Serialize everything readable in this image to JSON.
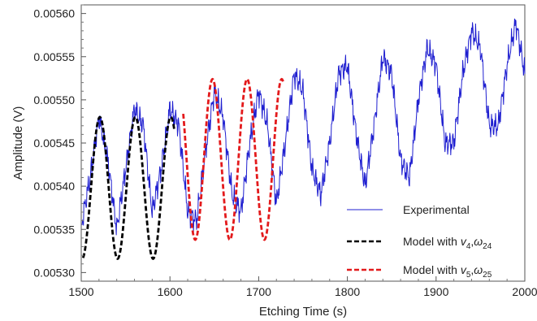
{
  "chart_data": {
    "type": "line",
    "title": "",
    "xlabel": "Etching Time (s)",
    "ylabel": "Amplitude (V)",
    "xlim": [
      1500,
      2000
    ],
    "ylim": [
      0.00529,
      0.00561
    ],
    "xticks": [
      "1500",
      "1600",
      "1700",
      "1800",
      "1900",
      "2000"
    ],
    "yticks": [
      "0.00530",
      "0.00535",
      "0.00540",
      "0.00545",
      "0.00550",
      "0.00555",
      "0.00560"
    ],
    "grid": false,
    "legend_position": "bottom-right",
    "legend": [
      {
        "label": "Experimental",
        "color": "#1f1fd0",
        "style": "solid"
      },
      {
        "label_parts": [
          "Model with ",
          "v",
          "4",
          ",",
          "ω",
          "24"
        ],
        "color": "#000000",
        "style": "dashed"
      },
      {
        "label_parts": [
          "Model with ",
          "v",
          "5",
          ",",
          "ω",
          "25"
        ],
        "color": "#e31a1c",
        "style": "dashed"
      }
    ],
    "series": [
      {
        "key": "experimental",
        "color": "#1f1fd0",
        "style": "solid",
        "x": [
          1501,
          1510,
          1520,
          1530,
          1540,
          1550,
          1560,
          1570,
          1580,
          1590,
          1600,
          1610,
          1620,
          1630,
          1640,
          1650,
          1660,
          1670,
          1680,
          1690,
          1700,
          1710,
          1720,
          1730,
          1740,
          1750,
          1760,
          1770,
          1780,
          1790,
          1800,
          1810,
          1820,
          1830,
          1840,
          1850,
          1860,
          1870,
          1880,
          1890,
          1900,
          1910,
          1920,
          1930,
          1940,
          1950,
          1960,
          1970,
          1980,
          1990,
          2000
        ],
        "y": [
          0.00536,
          0.00541,
          0.00548,
          0.00543,
          0.00535,
          0.00542,
          0.00549,
          0.00547,
          0.00537,
          0.00542,
          0.00549,
          0.00547,
          0.00537,
          0.00536,
          0.00544,
          0.00551,
          0.00548,
          0.00539,
          0.00537,
          0.00545,
          0.00551,
          0.00547,
          0.00538,
          0.00545,
          0.00553,
          0.00551,
          0.00542,
          0.00539,
          0.00545,
          0.00553,
          0.00554,
          0.00546,
          0.0054,
          0.00547,
          0.00555,
          0.00553,
          0.00543,
          0.00541,
          0.0055,
          0.00556,
          0.00554,
          0.00545,
          0.00545,
          0.00553,
          0.00558,
          0.00556,
          0.00547,
          0.00547,
          0.00554,
          0.00559,
          0.00553
        ]
      },
      {
        "key": "model_v4",
        "color": "#000000",
        "style": "dashed",
        "x_range": [
          1502,
          1605
        ],
        "offset": 0.005398,
        "amplitude": 8.2e-05,
        "period": 40,
        "peak_x": 1521
      },
      {
        "key": "model_v5",
        "color": "#e31a1c",
        "style": "dashed",
        "x_range": [
          1615,
          1728
        ],
        "offset": 0.005431,
        "amplitude": 9.3e-05,
        "period": 39,
        "peak_x": 1648
      }
    ]
  }
}
